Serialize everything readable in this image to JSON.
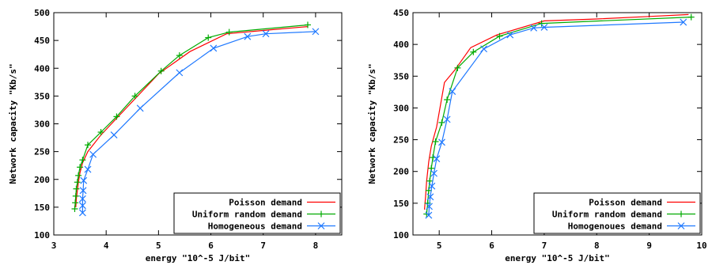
{
  "chart_data": [
    {
      "type": "line",
      "xlabel": "energy \"10^-5 J/bit\"",
      "ylabel": "Network capacity \"Kb/s\"",
      "xlim": [
        3,
        8.5
      ],
      "ylim": [
        100,
        500
      ],
      "xticks": [
        3,
        4,
        5,
        6,
        7,
        8
      ],
      "yticks": [
        100,
        150,
        200,
        250,
        300,
        350,
        400,
        450,
        500
      ],
      "grid": false,
      "legend_position": "bottom-right",
      "series": [
        {
          "name": "Poisson demand",
          "color": "#ff0000",
          "marker": "none",
          "points": [
            [
              3.42,
              150
            ],
            [
              3.43,
              165
            ],
            [
              3.45,
              180
            ],
            [
              3.47,
              195
            ],
            [
              3.5,
              212
            ],
            [
              3.55,
              230
            ],
            [
              3.65,
              250
            ],
            [
              3.9,
              280
            ],
            [
              4.4,
              330
            ],
            [
              5.0,
              390
            ],
            [
              5.6,
              430
            ],
            [
              6.3,
              462
            ],
            [
              7.0,
              468
            ],
            [
              7.85,
              475
            ]
          ]
        },
        {
          "name": "Uniform random demand",
          "color": "#00aa00",
          "marker": "+",
          "points": [
            [
              3.4,
              147
            ],
            [
              3.41,
              158
            ],
            [
              3.42,
              170
            ],
            [
              3.43,
              183
            ],
            [
              3.45,
              195
            ],
            [
              3.47,
              207
            ],
            [
              3.5,
              222
            ],
            [
              3.55,
              235
            ],
            [
              3.65,
              262
            ],
            [
              3.9,
              285
            ],
            [
              4.2,
              313
            ],
            [
              4.55,
              350
            ],
            [
              5.05,
              395
            ],
            [
              5.4,
              423
            ],
            [
              5.95,
              455
            ],
            [
              6.35,
              465
            ],
            [
              7.85,
              478
            ]
          ]
        },
        {
          "name": "Homogeneous demand",
          "color": "#1e78ff",
          "marker": "x",
          "points": [
            [
              3.55,
              140
            ],
            [
              3.55,
              153
            ],
            [
              3.55,
              165
            ],
            [
              3.56,
              180
            ],
            [
              3.57,
              198
            ],
            [
              3.65,
              218
            ],
            [
              3.75,
              245
            ],
            [
              4.15,
              280
            ],
            [
              4.65,
              328
            ],
            [
              5.4,
              392
            ],
            [
              6.05,
              436
            ],
            [
              6.7,
              457
            ],
            [
              7.05,
              462
            ],
            [
              8.0,
              466
            ]
          ]
        }
      ]
    },
    {
      "type": "line",
      "xlabel": "energy \"10^-5 J/bit\"",
      "ylabel": "Network capacity \"Kb/s\"",
      "xlim": [
        4.5,
        10
      ],
      "ylim": [
        100,
        450
      ],
      "xticks": [
        5,
        6,
        7,
        8,
        9,
        10
      ],
      "yticks": [
        100,
        150,
        200,
        250,
        300,
        350,
        400,
        450
      ],
      "grid": false,
      "legend_position": "bottom-right",
      "series": [
        {
          "name": "Poisson demand",
          "color": "#ff0000",
          "marker": "none",
          "points": [
            [
              4.72,
              140
            ],
            [
              4.74,
              160
            ],
            [
              4.76,
              185
            ],
            [
              4.8,
              215
            ],
            [
              4.85,
              240
            ],
            [
              4.95,
              270
            ],
            [
              5.1,
              340
            ],
            [
              5.3,
              360
            ],
            [
              5.6,
              395
            ],
            [
              6.1,
              415
            ],
            [
              7.0,
              437
            ],
            [
              8.0,
              440
            ],
            [
              9.0,
              444
            ],
            [
              9.75,
              447
            ]
          ]
        },
        {
          "name": "Uniform random demand",
          "color": "#00aa00",
          "marker": "+",
          "points": [
            [
              4.76,
              133
            ],
            [
              4.78,
              150
            ],
            [
              4.8,
              170
            ],
            [
              4.82,
              185
            ],
            [
              4.85,
              205
            ],
            [
              4.88,
              222
            ],
            [
              4.93,
              247
            ],
            [
              5.05,
              277
            ],
            [
              5.15,
              313
            ],
            [
              5.35,
              363
            ],
            [
              5.65,
              388
            ],
            [
              6.15,
              413
            ],
            [
              6.95,
              433
            ],
            [
              9.8,
              443
            ]
          ]
        },
        {
          "name": "Homogenoues demand",
          "color": "#1e78ff",
          "marker": "x",
          "points": [
            [
              4.8,
              131
            ],
            [
              4.81,
              145
            ],
            [
              4.83,
              160
            ],
            [
              4.86,
              177
            ],
            [
              4.9,
              197
            ],
            [
              4.95,
              220
            ],
            [
              5.05,
              246
            ],
            [
              5.15,
              282
            ],
            [
              5.25,
              326
            ],
            [
              5.85,
              393
            ],
            [
              6.35,
              415
            ],
            [
              6.8,
              426
            ],
            [
              7.0,
              427
            ],
            [
              9.65,
              435
            ]
          ]
        }
      ]
    }
  ]
}
